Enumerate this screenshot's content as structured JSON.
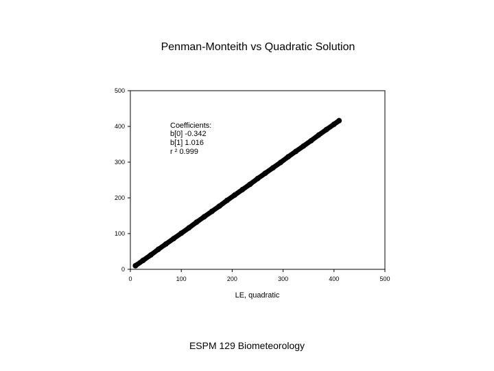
{
  "slide": {
    "title": "Penman-Monteith vs Quadratic Solution",
    "footer": "ESPM 129 Biometeorology"
  },
  "chart_data": {
    "type": "scatter",
    "title": "",
    "xlabel": "LE, quadratic",
    "ylabel": "",
    "xlim": [
      0,
      500
    ],
    "ylim": [
      0,
      500
    ],
    "x_ticks": [
      0,
      100,
      200,
      300,
      400,
      500
    ],
    "y_ticks": [
      0,
      100,
      200,
      300,
      400,
      500
    ],
    "grid": false,
    "marker_color": "#000000",
    "x": [
      10,
      25,
      40,
      55,
      70,
      85,
      100,
      115,
      130,
      145,
      160,
      175,
      190,
      205,
      220,
      235,
      250,
      265,
      280,
      295,
      310,
      325,
      340,
      355,
      370,
      385,
      400,
      410
    ],
    "y": [
      10,
      25,
      40,
      56,
      71,
      86,
      101,
      116,
      132,
      147,
      162,
      177,
      193,
      208,
      223,
      238,
      254,
      269,
      284,
      299,
      315,
      330,
      345,
      360,
      376,
      391,
      406,
      416
    ],
    "annotations": {
      "heading": "Coefficients:",
      "b0": "b[0] -0.342",
      "b1": "b[1] 1.016",
      "r2": "r ²    0.999"
    }
  }
}
